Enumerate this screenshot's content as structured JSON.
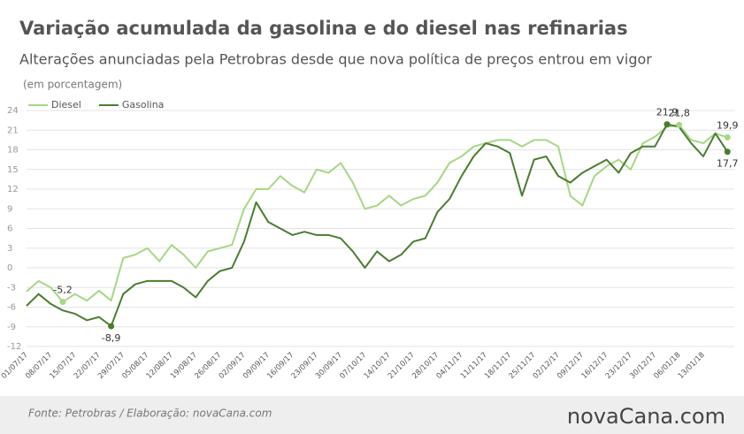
{
  "chart_data": {
    "type": "line",
    "title": "Variação acumulada da gasolina e do diesel nas refinarias",
    "subtitle": "Alterações anunciadas pela Petrobras desde que nova política de preços entrou em vigor",
    "unit_note": "(em porcentagem)",
    "source": "Fonte: Petrobras  / Elaboração: novaCana.com",
    "brand": "novaCana.com",
    "categories": [
      "01/07/17",
      null,
      "08/07/17",
      null,
      "15/07/17",
      null,
      "22/07/17",
      null,
      "29/07/17",
      null,
      "05/08/17",
      null,
      "12/08/17",
      null,
      "19/08/17",
      null,
      "26/08/17",
      null,
      "02/09/17",
      null,
      "09/09/17",
      null,
      "16/09/17",
      null,
      "23/09/17",
      null,
      "30/09/17",
      null,
      "07/10/17",
      null,
      "14/10/17",
      null,
      "21/10/17",
      null,
      "28/10/17",
      null,
      "04/11/17",
      null,
      "11/11/17",
      null,
      "18/11/17",
      null,
      "25/11/17",
      null,
      "02/12/17",
      null,
      "09/12/17",
      null,
      "16/12/17",
      null,
      "23/12/17",
      null,
      "30/12/17",
      null,
      "06/01/18",
      null,
      "13/01/18",
      null,
      null
    ],
    "series": [
      {
        "name": "Diesel",
        "color": "#a6d785",
        "values": [
          -3.6,
          -2,
          -3,
          -5.2,
          -4,
          -5,
          -3.5,
          -5,
          1.5,
          2,
          3,
          1,
          3.5,
          2,
          0,
          2.5,
          3,
          3.5,
          9,
          12,
          12,
          14,
          12.5,
          11.5,
          15,
          14.5,
          16,
          13,
          9,
          9.5,
          11,
          9.5,
          10.5,
          11,
          13,
          16,
          17,
          18.5,
          19,
          19.5,
          19.5,
          18.5,
          19.5,
          19.5,
          18.5,
          11,
          9.5,
          14,
          15.5,
          16.5,
          15,
          19,
          20,
          21.5,
          21.8,
          19.5,
          19,
          20.5,
          19.9
        ],
        "value_labels": [
          null,
          null,
          null,
          "-5,2",
          null,
          null,
          null,
          null,
          null,
          null,
          null,
          null,
          null,
          null,
          null,
          null,
          null,
          null,
          null,
          null,
          null,
          null,
          null,
          null,
          null,
          null,
          null,
          null,
          null,
          null,
          null,
          null,
          null,
          null,
          null,
          null,
          null,
          null,
          null,
          null,
          null,
          null,
          null,
          null,
          null,
          null,
          null,
          null,
          null,
          null,
          null,
          null,
          null,
          null,
          "21,8",
          null,
          null,
          null,
          "19,9"
        ]
      },
      {
        "name": "Gasolina",
        "color": "#4a7d2f",
        "values": [
          -5.8,
          -4,
          -5.5,
          -6.5,
          -7,
          -8,
          -7.5,
          -8.9,
          -4,
          -2.5,
          -2,
          -2,
          -2,
          -3,
          -4.5,
          -2,
          -0.5,
          0,
          4,
          10,
          7,
          6,
          5,
          5.5,
          5,
          5,
          4.5,
          2.5,
          0,
          2.5,
          1,
          2,
          4,
          4.5,
          8.5,
          10.5,
          14,
          17,
          19,
          18.5,
          17.5,
          11,
          16.5,
          17,
          14,
          13,
          14.5,
          15.5,
          16.5,
          14.5,
          17.5,
          18.5,
          18.5,
          21.9,
          21.5,
          19,
          17,
          20.5,
          17.7
        ],
        "value_labels": [
          null,
          null,
          null,
          null,
          null,
          null,
          null,
          "-8,9",
          null,
          null,
          null,
          null,
          null,
          null,
          null,
          null,
          null,
          null,
          null,
          null,
          null,
          null,
          null,
          null,
          null,
          null,
          null,
          null,
          null,
          null,
          null,
          null,
          null,
          null,
          null,
          null,
          null,
          null,
          null,
          null,
          null,
          null,
          null,
          null,
          null,
          null,
          null,
          null,
          null,
          null,
          null,
          null,
          null,
          "21,9",
          null,
          null,
          null,
          null,
          "17,7"
        ]
      }
    ],
    "ylim": [
      -12,
      24
    ],
    "yticks": [
      -12,
      -9,
      -6,
      -3,
      0,
      3,
      6,
      9,
      12,
      15,
      18,
      21,
      24
    ],
    "grid": true,
    "legend": "top-left"
  }
}
